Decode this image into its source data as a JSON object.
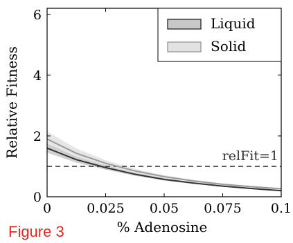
{
  "figure_label": "Figure 3",
  "chart_data": {
    "type": "line",
    "title": "",
    "xlabel": "% Adenosine",
    "ylabel": "Relative Fitness",
    "xlim": [
      0,
      0.1
    ],
    "ylim": [
      0,
      6.2
    ],
    "xticks": [
      0,
      0.025,
      0.05,
      0.075,
      0.1
    ],
    "xtick_labels": [
      "0",
      "0.025",
      "0.05",
      "0.075",
      "0.1"
    ],
    "yticks": [
      0,
      2,
      4,
      6
    ],
    "ytick_labels": [
      "0",
      "2",
      "4",
      "6"
    ],
    "grid": false,
    "legend_position": "top-right",
    "x": [
      0,
      0.0125,
      0.025,
      0.0375,
      0.05,
      0.0625,
      0.075,
      0.0875,
      0.1
    ],
    "series": [
      {
        "name": "Liquid",
        "line_color": "#333333",
        "band_color": "#c8c8c8",
        "y": [
          1.6,
          1.22,
          0.96,
          0.74,
          0.57,
          0.45,
          0.35,
          0.27,
          0.2
        ],
        "y_low": [
          1.45,
          1.12,
          0.89,
          0.69,
          0.53,
          0.42,
          0.33,
          0.25,
          0.18
        ],
        "y_high": [
          1.75,
          1.32,
          1.03,
          0.79,
          0.61,
          0.48,
          0.37,
          0.29,
          0.22
        ]
      },
      {
        "name": "Solid",
        "line_color": "#9a9a9a",
        "band_color": "#e2e2e2",
        "y": [
          1.9,
          1.43,
          1.1,
          0.85,
          0.66,
          0.52,
          0.41,
          0.33,
          0.26
        ],
        "y_low": [
          1.66,
          1.27,
          1.0,
          0.78,
          0.61,
          0.48,
          0.38,
          0.3,
          0.23
        ],
        "y_high": [
          2.15,
          1.59,
          1.2,
          0.92,
          0.71,
          0.56,
          0.44,
          0.36,
          0.29
        ]
      }
    ],
    "reference_line": {
      "y": 1,
      "label": "relFit=1",
      "style": "dashed"
    }
  }
}
